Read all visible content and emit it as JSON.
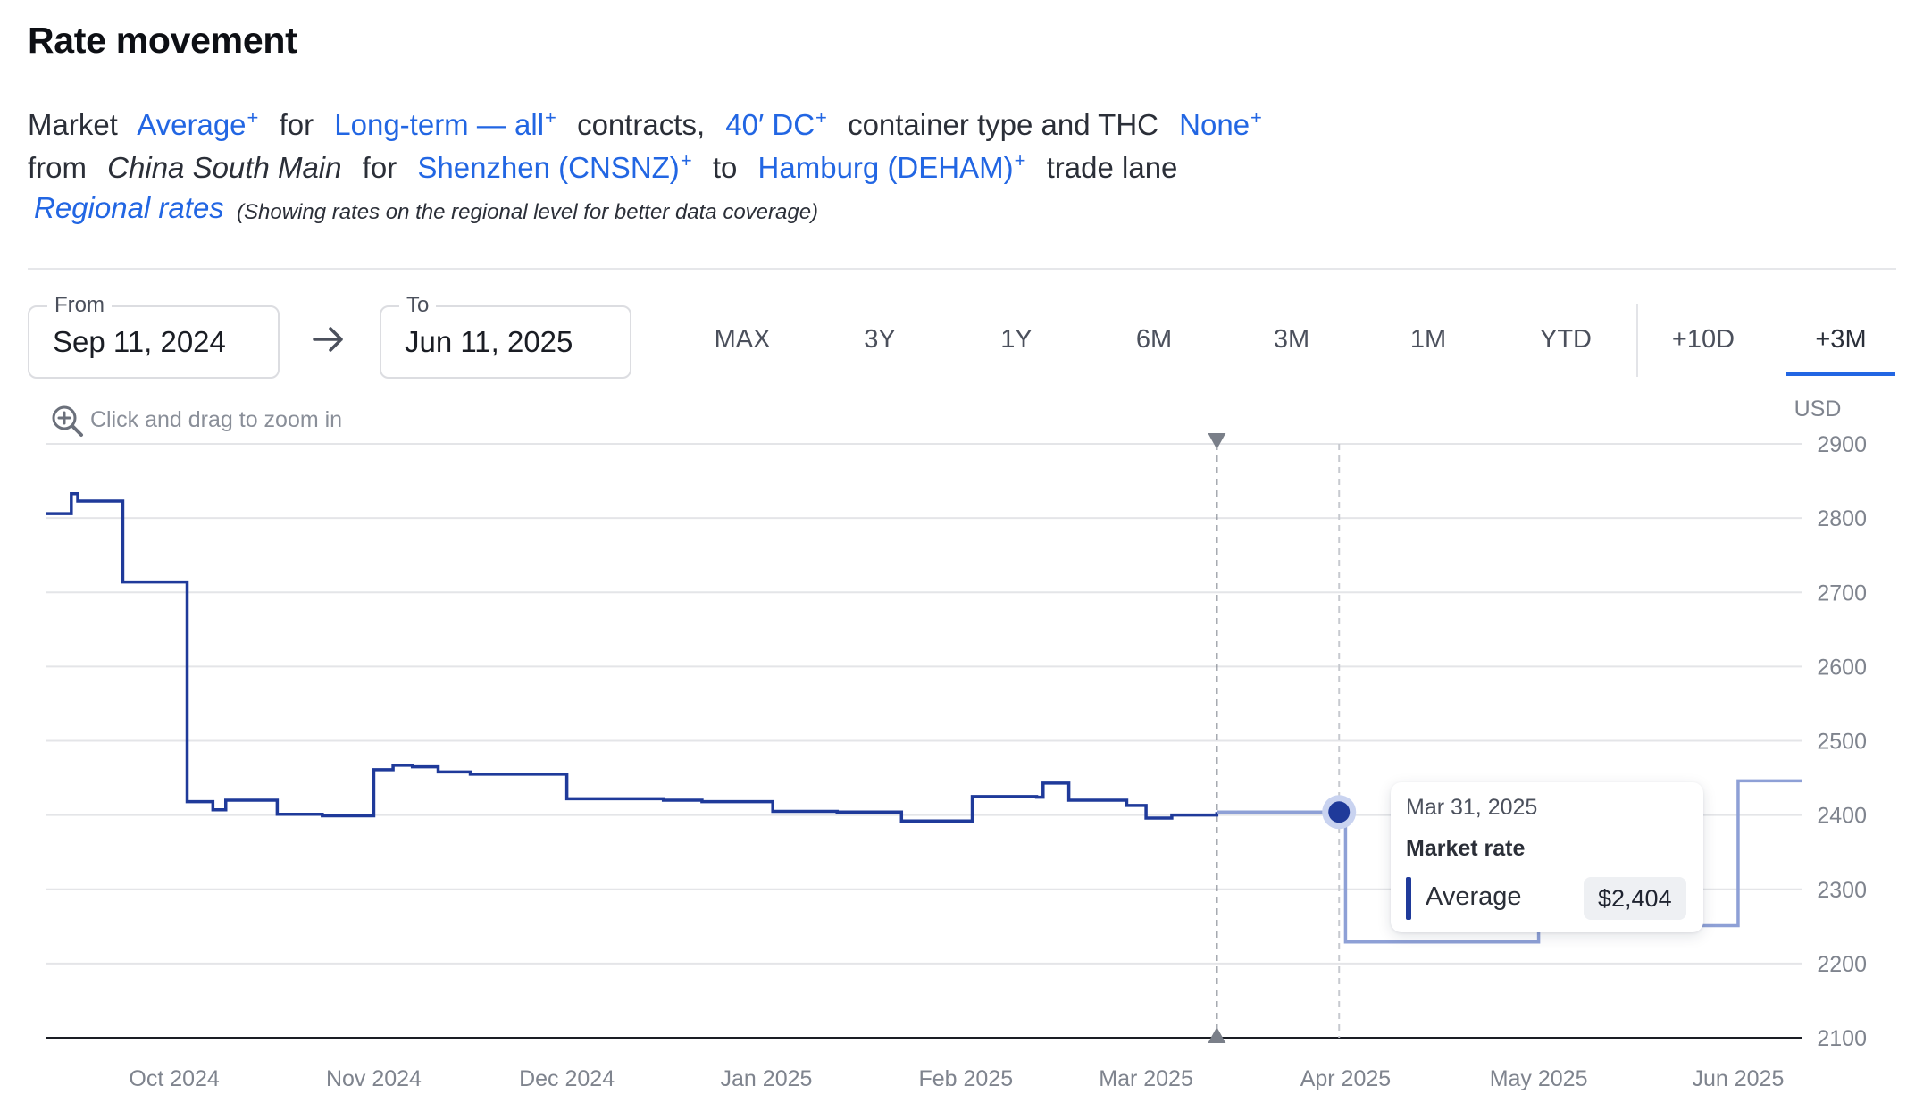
{
  "header": {
    "title": "Rate movement"
  },
  "description": {
    "market_word": "Market",
    "market_link": "Average",
    "for_word": "for",
    "contract_link": "Long-term — all",
    "contracts_word": "contracts,",
    "container_link": "40′ DC",
    "container_word": "container type and THC",
    "thc_link": "None",
    "from_word": "from",
    "origin_region": "China South Main",
    "for_word_2": "for",
    "origin_link": "Shenzhen (CNSNZ)",
    "to_word": "to",
    "destination_link": "Hamburg (DEHAM)",
    "lane_word": "trade lane",
    "plus_sign": "+"
  },
  "regional": {
    "link": "Regional rates",
    "note": "(Showing rates on the regional level for better data coverage)"
  },
  "date_range": {
    "from_label": "From",
    "from_value": "Sep 11, 2024",
    "to_label": "To",
    "to_value": "Jun 11, 2025"
  },
  "range_buttons": [
    {
      "label": "MAX"
    },
    {
      "label": "3Y"
    },
    {
      "label": "1Y"
    },
    {
      "label": "6M"
    },
    {
      "label": "3M"
    },
    {
      "label": "1M"
    },
    {
      "label": "YTD"
    },
    {
      "label": "+10D"
    },
    {
      "label": "+3M"
    }
  ],
  "active_range": "+3M",
  "zoom_hint": "Click and drag to zoom in",
  "tooltip": {
    "date": "Mar 31, 2025",
    "title": "Market rate",
    "series": "Average",
    "value": "$2,404"
  },
  "colors": {
    "link": "#2266e3",
    "historical_line": "#1f3a9a",
    "forecast_line": "#8ea0d6",
    "grid": "#e4e5e8"
  },
  "chart_data": {
    "type": "line",
    "step": true,
    "ylabel": "USD",
    "ylim": [
      2100,
      2900
    ],
    "yticks": [
      2900,
      2800,
      2700,
      2600,
      2500,
      2400,
      2300,
      2200,
      2100
    ],
    "xticks": [
      "Oct 2024",
      "Nov 2024",
      "Dec 2024",
      "Jan 2025",
      "Feb 2025",
      "Mar 2025",
      "Apr 2025",
      "May 2025",
      "Jun 2025"
    ],
    "grid": true,
    "today_marker": "2025-03-12",
    "highlight": {
      "x": "2025-03-31",
      "y": 2404
    },
    "series": [
      {
        "name": "Average",
        "kind": "historical",
        "points": [
          [
            "2024-09-11",
            2806
          ],
          [
            "2024-09-14",
            2806
          ],
          [
            "2024-09-15",
            2833
          ],
          [
            "2024-09-16",
            2823
          ],
          [
            "2024-09-22",
            2823
          ],
          [
            "2024-09-23",
            2714
          ],
          [
            "2024-10-02",
            2714
          ],
          [
            "2024-10-03",
            2418
          ],
          [
            "2024-10-07",
            2407
          ],
          [
            "2024-10-09",
            2420
          ],
          [
            "2024-10-17",
            2401
          ],
          [
            "2024-10-24",
            2399
          ],
          [
            "2024-11-01",
            2461
          ],
          [
            "2024-11-04",
            2467
          ],
          [
            "2024-11-07",
            2465
          ],
          [
            "2024-11-11",
            2458
          ],
          [
            "2024-11-16",
            2455
          ],
          [
            "2024-11-22",
            2455
          ],
          [
            "2024-12-01",
            2422
          ],
          [
            "2024-12-16",
            2420
          ],
          [
            "2024-12-22",
            2418
          ],
          [
            "2025-01-01",
            2418
          ],
          [
            "2025-01-02",
            2405
          ],
          [
            "2025-01-12",
            2404
          ],
          [
            "2025-01-21",
            2404
          ],
          [
            "2025-01-22",
            2392
          ],
          [
            "2025-02-01",
            2392
          ],
          [
            "2025-02-02",
            2425
          ],
          [
            "2025-02-12",
            2424
          ],
          [
            "2025-02-13",
            2443
          ],
          [
            "2025-02-17",
            2420
          ],
          [
            "2025-02-26",
            2413
          ],
          [
            "2025-03-01",
            2396
          ],
          [
            "2025-03-05",
            2400
          ],
          [
            "2025-03-12",
            2404
          ]
        ]
      },
      {
        "name": "Average",
        "kind": "forecast",
        "points": [
          [
            "2025-03-12",
            2404
          ],
          [
            "2025-03-31",
            2404
          ],
          [
            "2025-04-01",
            2229
          ],
          [
            "2025-04-30",
            2229
          ],
          [
            "2025-05-01",
            2251
          ],
          [
            "2025-05-31",
            2251
          ],
          [
            "2025-06-01",
            2446
          ],
          [
            "2025-06-11",
            2446
          ]
        ]
      }
    ]
  }
}
